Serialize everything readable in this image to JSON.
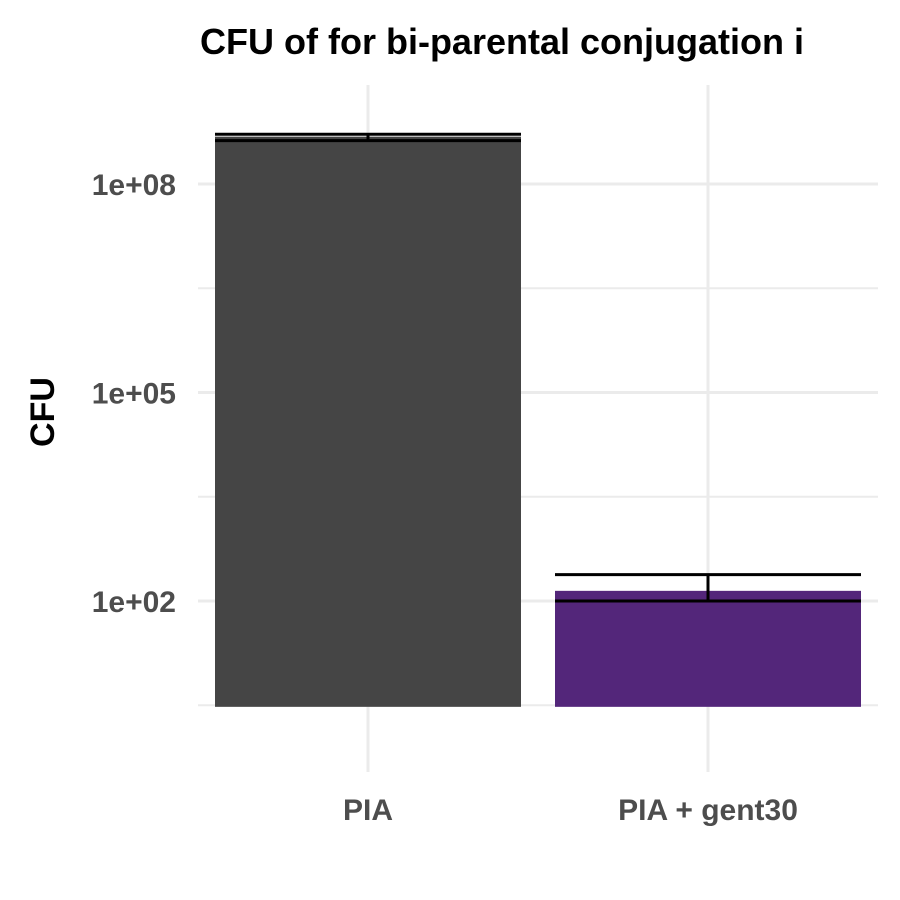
{
  "chart_data": {
    "type": "bar",
    "title": "CFU of for bi-parental conjugation i",
    "xlabel": "",
    "ylabel": "CFU",
    "y_scale": "log10",
    "ylim": [
      3,
      1000000000
    ],
    "y_ticks": [
      {
        "value": 100,
        "label": "1e+02"
      },
      {
        "value": 100000,
        "label": "1e+05"
      },
      {
        "value": 100000000,
        "label": "1e+08"
      }
    ],
    "y_minor_ticks": [
      3.16,
      3162,
      3162278
    ],
    "categories": [
      "PIA",
      "PIA + gent30"
    ],
    "values": [
      480000000,
      140
    ],
    "error_low": [
      420000000,
      100
    ],
    "error_high": [
      520000000,
      240
    ],
    "colors": [
      "#454545",
      "#53267a"
    ],
    "grid": true,
    "legend": "none"
  }
}
